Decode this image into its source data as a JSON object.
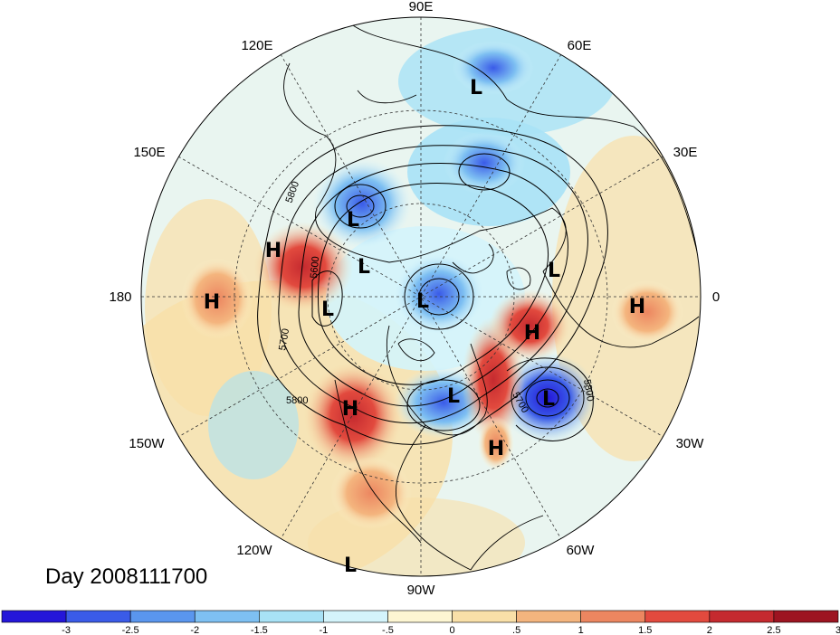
{
  "title": "Day 2008111700",
  "longitude_labels": [
    "90E",
    "60E",
    "30E",
    "0",
    "30W",
    "60W",
    "90W",
    "120W",
    "150W",
    "180",
    "150E",
    "120E"
  ],
  "pressure_centers": [
    {
      "type": "H",
      "label": "H"
    },
    {
      "type": "H",
      "label": "H"
    },
    {
      "type": "H",
      "label": "H"
    },
    {
      "type": "H",
      "label": "H"
    },
    {
      "type": "H",
      "label": "H"
    },
    {
      "type": "H",
      "label": "H"
    },
    {
      "type": "L",
      "label": "L"
    },
    {
      "type": "L",
      "label": "L"
    },
    {
      "type": "L",
      "label": "L"
    },
    {
      "type": "L",
      "label": "L"
    },
    {
      "type": "L",
      "label": "L"
    },
    {
      "type": "L",
      "label": "L"
    },
    {
      "type": "L",
      "label": "L"
    },
    {
      "type": "L",
      "label": "L"
    },
    {
      "type": "L",
      "label": "L"
    }
  ],
  "contour_labels": [
    "5800",
    "5600",
    "5700",
    "5800",
    "5700",
    "5800"
  ],
  "colorbar": {
    "colors": [
      "#2416d9",
      "#3a5be8",
      "#5a96ee",
      "#7ec0f2",
      "#a8e2f6",
      "#d4f4fb",
      "#fdf6d2",
      "#f9e0a8",
      "#f4b57e",
      "#ec8660",
      "#e24a3e",
      "#c52a2f",
      "#9d1421"
    ],
    "tick_labels": [
      "-3",
      "-2.5",
      "-2",
      "-1.5",
      "-1",
      "-.5",
      "0",
      ".5",
      "1",
      "1.5",
      "2",
      "2.5",
      "3"
    ]
  }
}
